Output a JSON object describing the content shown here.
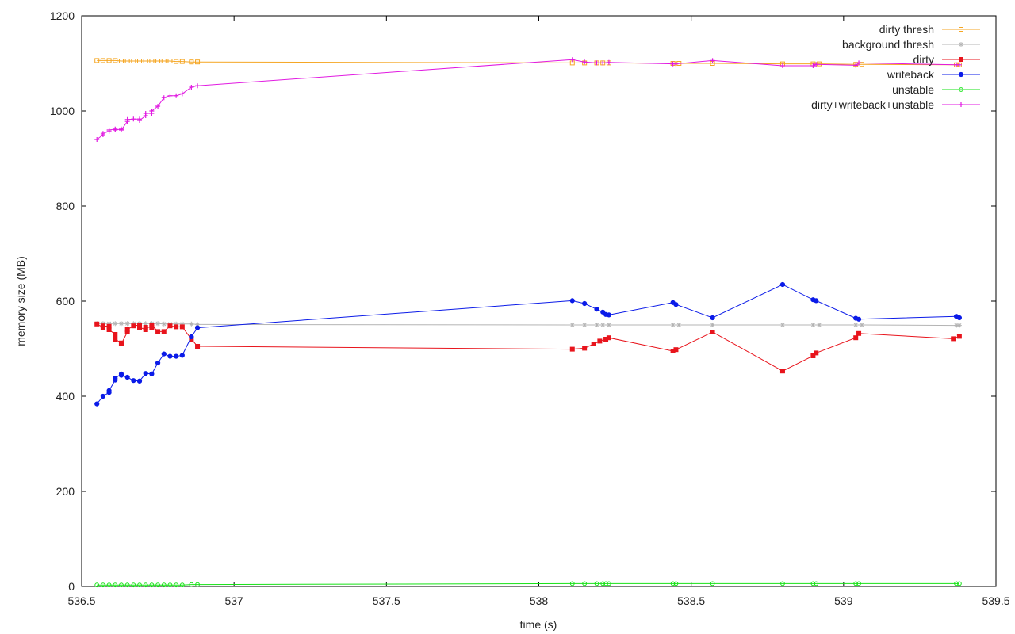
{
  "chart_data": {
    "type": "line",
    "xlabel": "time (s)",
    "ylabel": "memory size (MB)",
    "xlim": [
      536.5,
      539.5
    ],
    "ylim": [
      0,
      1200
    ],
    "xticks": [
      "536.5",
      "537",
      "537.5",
      "538",
      "538.5",
      "539",
      "539.5"
    ],
    "yticks": [
      "0",
      "200",
      "400",
      "600",
      "800",
      "1000",
      "1200"
    ],
    "legend_position": "top-right",
    "grid": false,
    "series": [
      {
        "name": "dirty thresh",
        "color": "#f5a623",
        "marker": "square-open",
        "x": [
          536.55,
          536.57,
          536.59,
          536.61,
          536.63,
          536.65,
          536.67,
          536.69,
          536.71,
          536.73,
          536.75,
          536.77,
          536.79,
          536.81,
          536.83,
          536.86,
          536.88,
          538.11,
          538.15,
          538.19,
          538.21,
          538.23,
          538.44,
          538.46,
          538.57,
          538.8,
          538.9,
          538.92,
          539.04,
          539.06,
          539.37,
          539.38
        ],
        "y": [
          1106,
          1106,
          1106,
          1106,
          1105,
          1105,
          1105,
          1105,
          1105,
          1105,
          1105,
          1105,
          1105,
          1104,
          1104,
          1103,
          1103,
          1101,
          1101,
          1101,
          1101,
          1101,
          1100,
          1100,
          1100,
          1099,
          1099,
          1099,
          1098,
          1098,
          1097,
          1097
        ]
      },
      {
        "name": "background thresh",
        "color": "#b4b4b4",
        "marker": "star",
        "x": [
          536.55,
          536.57,
          536.59,
          536.61,
          536.63,
          536.65,
          536.67,
          536.69,
          536.71,
          536.73,
          536.75,
          536.77,
          536.79,
          536.81,
          536.83,
          536.86,
          536.88,
          538.11,
          538.15,
          538.19,
          538.21,
          538.23,
          538.44,
          538.46,
          538.57,
          538.8,
          538.9,
          538.92,
          539.04,
          539.06,
          539.37,
          539.38
        ],
        "y": [
          553,
          553,
          553,
          553,
          553,
          553,
          553,
          553,
          553,
          553,
          553,
          552,
          552,
          552,
          552,
          552,
          551,
          550,
          550,
          550,
          550,
          550,
          550,
          550,
          550,
          550,
          550,
          550,
          550,
          550,
          549,
          549
        ]
      },
      {
        "name": "dirty",
        "color": "#e8141c",
        "marker": "square-filled",
        "x": [
          536.55,
          536.57,
          536.57,
          536.59,
          536.59,
          536.61,
          536.61,
          536.63,
          536.63,
          536.65,
          536.65,
          536.67,
          536.69,
          536.69,
          536.71,
          536.71,
          536.73,
          536.73,
          536.75,
          536.77,
          536.79,
          536.81,
          536.83,
          536.86,
          536.88,
          538.11,
          538.15,
          538.18,
          538.2,
          538.22,
          538.23,
          538.44,
          538.45,
          538.57,
          538.8,
          538.9,
          538.91,
          539.04,
          539.05,
          539.36,
          539.38
        ],
        "y": [
          552,
          545,
          548,
          547,
          540,
          530,
          520,
          512,
          510,
          535,
          540,
          548,
          550,
          545,
          540,
          545,
          545,
          550,
          536,
          536,
          548,
          546,
          546,
          520,
          505,
          499,
          501,
          510,
          516,
          520,
          523,
          495,
          498,
          535,
          453,
          485,
          491,
          523,
          532,
          521,
          526
        ]
      },
      {
        "name": "writeback",
        "color": "#0b1be8",
        "marker": "circle-filled",
        "x": [
          536.55,
          536.57,
          536.59,
          536.59,
          536.61,
          536.61,
          536.63,
          536.63,
          536.65,
          536.67,
          536.69,
          536.69,
          536.71,
          536.73,
          536.75,
          536.77,
          536.79,
          536.81,
          536.83,
          536.86,
          536.88,
          538.11,
          538.15,
          538.19,
          538.21,
          538.22,
          538.23,
          538.44,
          538.45,
          538.57,
          538.8,
          538.9,
          538.91,
          539.04,
          539.05,
          539.37,
          539.38
        ],
        "y": [
          384,
          400,
          408,
          412,
          434,
          438,
          447,
          444,
          440,
          433,
          432,
          432,
          448,
          447,
          470,
          489,
          484,
          484,
          486,
          525,
          544,
          601,
          595,
          583,
          577,
          572,
          571,
          597,
          593,
          565,
          635,
          603,
          601,
          564,
          562,
          568,
          565
        ]
      },
      {
        "name": "unstable",
        "color": "#17e317",
        "marker": "circle-open",
        "x": [
          536.55,
          536.57,
          536.59,
          536.61,
          536.63,
          536.65,
          536.67,
          536.69,
          536.71,
          536.73,
          536.75,
          536.77,
          536.79,
          536.81,
          536.83,
          536.86,
          536.88,
          538.11,
          538.15,
          538.19,
          538.21,
          538.22,
          538.23,
          538.44,
          538.45,
          538.57,
          538.8,
          538.9,
          538.91,
          539.04,
          539.05,
          539.37,
          539.38
        ],
        "y": [
          3,
          3,
          3,
          3,
          3,
          3,
          3,
          3,
          3,
          3,
          3,
          3,
          3,
          3,
          3,
          4,
          4,
          6,
          6,
          6,
          6,
          6,
          6,
          6,
          6,
          6,
          6,
          6,
          6,
          6,
          6,
          6,
          6
        ]
      },
      {
        "name": "dirty+writeback+unstable",
        "color": "#e11ae1",
        "marker": "plus",
        "x": [
          536.55,
          536.57,
          536.57,
          536.59,
          536.59,
          536.61,
          536.61,
          536.63,
          536.63,
          536.65,
          536.65,
          536.67,
          536.69,
          536.69,
          536.71,
          536.71,
          536.73,
          536.73,
          536.75,
          536.77,
          536.79,
          536.81,
          536.83,
          536.86,
          536.88,
          538.11,
          538.15,
          538.19,
          538.21,
          538.23,
          538.44,
          538.45,
          538.57,
          538.8,
          538.9,
          538.91,
          539.04,
          539.05,
          539.37,
          539.38
        ],
        "y": [
          940,
          950,
          953,
          957,
          960,
          962,
          960,
          962,
          960,
          978,
          982,
          983,
          983,
          980,
          990,
          995,
          995,
          1000,
          1010,
          1028,
          1032,
          1032,
          1036,
          1050,
          1053,
          1108,
          1103,
          1101,
          1101,
          1102,
          1099,
          1099,
          1106,
          1095,
          1095,
          1098,
          1096,
          1101,
          1097,
          1097
        ]
      }
    ]
  }
}
